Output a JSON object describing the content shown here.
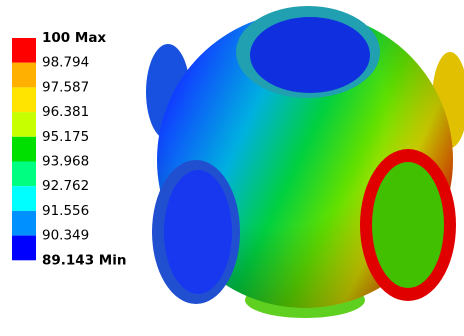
{
  "legend": {
    "labels": [
      "100 Max",
      "98.794",
      "97.587",
      "96.381",
      "95.175",
      "93.968",
      "92.762",
      "91.556",
      "90.349",
      "89.143 Min"
    ],
    "colors": [
      "#ff0000",
      "#ffb000",
      "#ffe400",
      "#c8ff00",
      "#00e000",
      "#00ff80",
      "#00ffff",
      "#0090ff",
      "#0000ff"
    ]
  }
}
